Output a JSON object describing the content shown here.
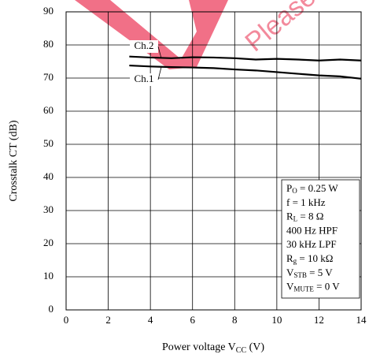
{
  "chart_data": {
    "type": "line",
    "watermark": "Please v",
    "x_label": [
      "Power voltage  V",
      "CC",
      "  (V)"
    ],
    "y_label": "Crosstalk  CT  (dB)",
    "x": [
      3,
      4,
      5,
      6,
      7,
      8,
      9,
      10,
      11,
      12,
      13,
      14
    ],
    "series": [
      {
        "name": "Ch.2",
        "color": "#000000",
        "values": [
          76.5,
          76.2,
          76,
          76.3,
          76.2,
          76,
          75.6,
          75.8,
          75.6,
          75.3,
          75.6,
          75.3
        ]
      },
      {
        "name": "Ch.1",
        "color": "#000000",
        "values": [
          73.8,
          73.5,
          73.3,
          73.2,
          73,
          72.6,
          72.3,
          71.8,
          71.3,
          70.8,
          70.5,
          69.8
        ]
      }
    ],
    "xlim": [
      0,
      14
    ],
    "xticks": [
      0,
      2,
      4,
      6,
      8,
      10,
      12,
      14
    ],
    "ylim": [
      0,
      90
    ],
    "yticks": [
      0,
      10,
      20,
      30,
      40,
      50,
      60,
      70,
      80,
      90
    ],
    "grid": true,
    "conditions": [
      [
        "P",
        "O",
        " = 0.25 W"
      ],
      [
        "f = 1 kHz"
      ],
      [
        "R",
        "L",
        " = 8 Ω"
      ],
      [
        "400 Hz HPF"
      ],
      [
        "30 kHz LPF"
      ],
      [
        "R",
        "g",
        " = 10 kΩ"
      ],
      [
        "V",
        "STB",
        " = 5 V"
      ],
      [
        "V",
        "MUTE",
        " = 0 V"
      ]
    ]
  }
}
